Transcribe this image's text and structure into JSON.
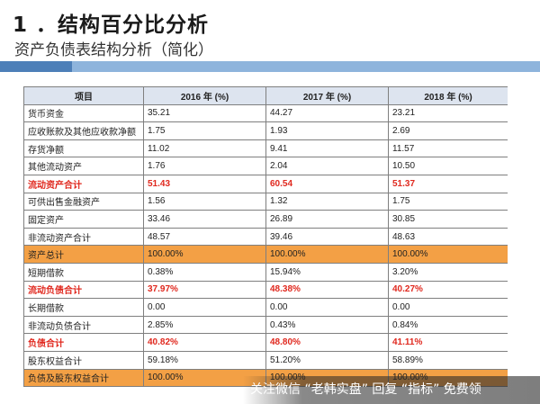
{
  "title": "1 ．结构百分比分析",
  "subtitle": "资产负债表结构分析（简化）",
  "colors": {
    "accent_light": "#8eb4dc",
    "accent_dark": "#4d7fb8",
    "header_bg": "#dde4ef",
    "highlight_orange": "#f3a045",
    "highlight_red_text": "#e0281e"
  },
  "table": {
    "headers": [
      "项目",
      "2016 年 (%)",
      "2017 年 (%)",
      "2018 年 (%)"
    ],
    "rows": [
      {
        "cells": [
          "货币资金",
          "35.21",
          "44.27",
          "23.21"
        ],
        "style": "normal"
      },
      {
        "cells": [
          "应收账款及其他应收款净额",
          "1.75",
          "1.93",
          "2.69"
        ],
        "style": "normal"
      },
      {
        "cells": [
          "存货净额",
          "11.02",
          "9.41",
          "11.57"
        ],
        "style": "normal"
      },
      {
        "cells": [
          "其他流动资产",
          "1.76",
          "2.04",
          "10.50"
        ],
        "style": "normal"
      },
      {
        "cells": [
          "流动资产合计",
          "51.43",
          "60.54",
          "51.37"
        ],
        "style": "red"
      },
      {
        "cells": [
          "可供出售金融资产",
          "1.56",
          "1.32",
          "1.75"
        ],
        "style": "normal"
      },
      {
        "cells": [
          "固定资产",
          "33.46",
          "26.89",
          "30.85"
        ],
        "style": "normal"
      },
      {
        "cells": [
          "非流动资产合计",
          "48.57",
          "39.46",
          "48.63"
        ],
        "style": "normal"
      },
      {
        "cells": [
          "资产总计",
          "100.00%",
          "100.00%",
          "100.00%"
        ],
        "style": "orange"
      },
      {
        "cells": [
          "短期借款",
          "0.38%",
          "15.94%",
          "3.20%"
        ],
        "style": "normal"
      },
      {
        "cells": [
          "流动负债合计",
          "37.97%",
          "48.38%",
          "40.27%"
        ],
        "style": "red"
      },
      {
        "cells": [
          "长期借款",
          "0.00",
          "0.00",
          "0.00"
        ],
        "style": "normal"
      },
      {
        "cells": [
          "非流动负债合计",
          "2.85%",
          "0.43%",
          "0.84%"
        ],
        "style": "normal"
      },
      {
        "cells": [
          "负债合计",
          "40.82%",
          "48.80%",
          "41.11%"
        ],
        "style": "red"
      },
      {
        "cells": [
          "股东权益合计",
          "59.18%",
          "51.20%",
          "58.89%"
        ],
        "style": "normal"
      },
      {
        "cells": [
          "负债及股东权益合计",
          "100.00%",
          "100.00%",
          "100.00%"
        ],
        "style": "orange"
      }
    ]
  },
  "watermark": "关注微信 “老韩实盘” 回复 “指标” 免费领"
}
